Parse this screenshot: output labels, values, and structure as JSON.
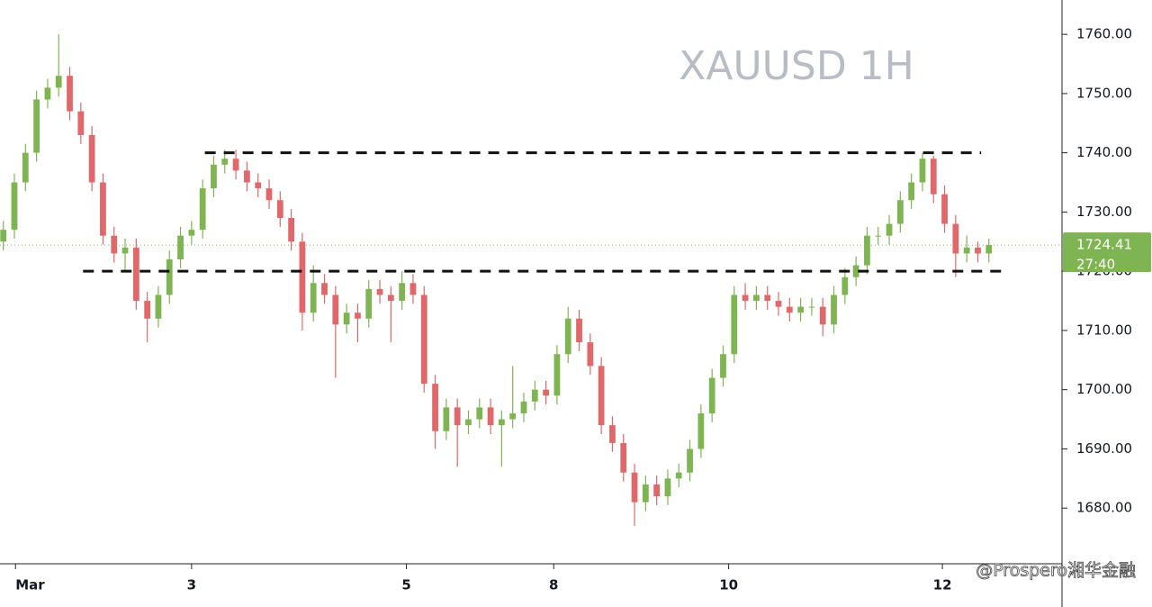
{
  "chart_data": {
    "type": "candlestick",
    "title": "XAUUSD 1H",
    "open": [
      1725,
      1727,
      1735,
      1740,
      1749,
      1751,
      1753,
      1747,
      1743,
      1735,
      1726,
      1723,
      1724,
      1715,
      1712,
      1716,
      1722,
      1726,
      1727,
      1734,
      1738,
      1739,
      1737,
      1735,
      1734,
      1732,
      1729,
      1725,
      1713,
      1718,
      1716,
      1711,
      1713,
      1712,
      1717,
      1716,
      1715,
      1718,
      1716,
      1701,
      1693,
      1697,
      1694,
      1695,
      1697,
      1694,
      1695,
      1696,
      1698,
      1700,
      1699,
      1706,
      1712,
      1708,
      1704,
      1694,
      1691,
      1686,
      1681,
      1684,
      1682,
      1685,
      1686,
      1690,
      1696,
      1702,
      1706,
      1716,
      1715,
      1716,
      1715,
      1714,
      1713,
      1714,
      1714,
      1711,
      1716,
      1719,
      1721,
      1726,
      1726,
      1728,
      1732,
      1735,
      1739,
      1733,
      1728,
      1723,
      1724,
      1723
    ],
    "high": [
      1728.5,
      1736.5,
      1741.5,
      1750.5,
      1752.5,
      1760,
      1754.5,
      1748.5,
      1744.5,
      1736.5,
      1727.5,
      1725.5,
      1725.5,
      1716.5,
      1717.5,
      1723.5,
      1727.5,
      1728.5,
      1735.5,
      1739.5,
      1740.5,
      1740.5,
      1738.5,
      1736.5,
      1735.5,
      1733.5,
      1730.5,
      1726.5,
      1721,
      1719.5,
      1717.5,
      1714.5,
      1714.5,
      1718.5,
      1718.5,
      1717.5,
      1720,
      1719.5,
      1717.5,
      1702.5,
      1698.5,
      1698.5,
      1696.5,
      1698.5,
      1698.5,
      1696.5,
      1704,
      1699.5,
      1701.5,
      1701.5,
      1707.5,
      1714,
      1713.5,
      1709.5,
      1705.5,
      1695.5,
      1692.5,
      1687.5,
      1685.5,
      1685.5,
      1686.5,
      1687.5,
      1691.5,
      1697.5,
      1703.5,
      1707.5,
      1717.5,
      1718,
      1717.5,
      1717.5,
      1716.5,
      1715.5,
      1715.5,
      1715.5,
      1715.5,
      1717.5,
      1720.5,
      1722.5,
      1727.5,
      1727.5,
      1729.5,
      1733.5,
      1736.5,
      1740,
      1739.5,
      1734.5,
      1729.5,
      1726,
      1725,
      1725.5
    ],
    "low": [
      1723.5,
      1725.5,
      1733.5,
      1738.5,
      1747.5,
      1749.5,
      1745.5,
      1741.5,
      1733.5,
      1724.5,
      1721.5,
      1720,
      1713.5,
      1708,
      1710.5,
      1714.5,
      1720.5,
      1724.5,
      1725.5,
      1732.5,
      1736.5,
      1735.5,
      1733.5,
      1732.5,
      1730.5,
      1727.5,
      1723.5,
      1710,
      1711.5,
      1714.5,
      1702,
      1709.5,
      1708,
      1710.5,
      1714.5,
      1708,
      1713.5,
      1714.5,
      1699.5,
      1690,
      1691.5,
      1687,
      1692.5,
      1693.5,
      1692.5,
      1687,
      1693.5,
      1694.5,
      1696.5,
      1697.5,
      1697.5,
      1704.5,
      1706.5,
      1702.5,
      1692.5,
      1689.5,
      1684.5,
      1677,
      1679.5,
      1680.5,
      1680.5,
      1683.5,
      1684.5,
      1688.5,
      1694.5,
      1700.5,
      1704.5,
      1713.5,
      1713.5,
      1713.5,
      1712.5,
      1711.5,
      1711.5,
      1712.5,
      1709,
      1709.5,
      1714.5,
      1717.5,
      1719.5,
      1724.5,
      1724.5,
      1726.5,
      1730.5,
      1733.5,
      1731.5,
      1726.5,
      1719,
      1721.5,
      1721.5,
      1721.5
    ],
    "close": [
      1727,
      1735,
      1740,
      1749,
      1751,
      1753,
      1747,
      1743,
      1735,
      1726,
      1723,
      1724,
      1715,
      1712,
      1716,
      1722,
      1726,
      1727,
      1734,
      1738,
      1739,
      1737,
      1735,
      1734,
      1732,
      1729,
      1725,
      1713,
      1718,
      1716,
      1711,
      1713,
      1712,
      1717,
      1716,
      1715,
      1718,
      1716,
      1701,
      1693,
      1697,
      1694,
      1695,
      1697,
      1694,
      1695,
      1696,
      1698,
      1700,
      1699,
      1706,
      1712,
      1708,
      1704,
      1694,
      1691,
      1686,
      1681,
      1684,
      1682,
      1685,
      1686,
      1690,
      1696,
      1702,
      1706,
      1716,
      1715,
      1716,
      1715,
      1714,
      1713,
      1714,
      1714,
      1711,
      1716,
      1719,
      1721,
      1726,
      1726,
      1728,
      1732,
      1735,
      1739,
      1733,
      1728,
      1723,
      1724,
      1723,
      1724.41
    ],
    "up_color": "#7fb452",
    "down_color": "#e0686a",
    "xlim": [
      -0.3,
      95.6
    ],
    "xticks": [
      {
        "value": 1.1,
        "label": "Mar"
      },
      {
        "value": 17,
        "label": "3"
      },
      {
        "value": 36.4,
        "label": "5"
      },
      {
        "value": 49.7,
        "label": "8"
      },
      {
        "value": 65.5,
        "label": "10"
      },
      {
        "value": 84.8,
        "label": "12"
      }
    ],
    "ylim": [
      1670.6,
      1765.8
    ],
    "yticks": [
      {
        "value": 1680,
        "label": "1680.00"
      },
      {
        "value": 1690,
        "label": "1690.00"
      },
      {
        "value": 1700,
        "label": "1700.00"
      },
      {
        "value": 1710,
        "label": "1710.00"
      },
      {
        "value": 1720,
        "label": "1720.00"
      },
      {
        "value": 1730,
        "label": "1730.00"
      },
      {
        "value": 1740,
        "label": "1740.00"
      },
      {
        "value": 1750,
        "label": "1750.00"
      },
      {
        "value": 1760,
        "label": "1760.00"
      }
    ],
    "levels": [
      {
        "value": 1740,
        "x": [
          18.2,
          88.3
        ]
      },
      {
        "value": 1720,
        "x": [
          7.2,
          90.4
        ]
      }
    ],
    "last_price": 1724.41,
    "countdown": "27:40",
    "watermark": "@Prospero湘华金融"
  }
}
